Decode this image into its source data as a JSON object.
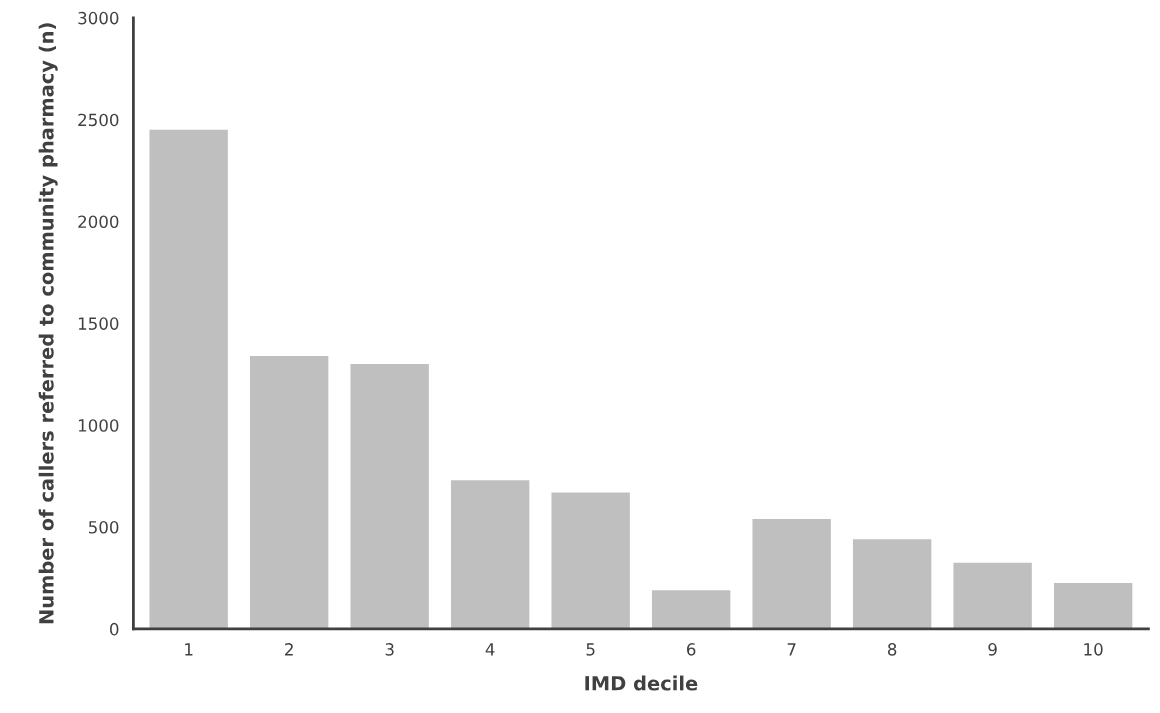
{
  "chart_data": {
    "type": "bar",
    "xlabel": "IMD decile",
    "ylabel": "Number of callers referred to community pharmacy (n)",
    "categories": [
      "1",
      "2",
      "3",
      "4",
      "5",
      "6",
      "7",
      "8",
      "9",
      "10"
    ],
    "values": [
      2450,
      1340,
      1300,
      730,
      670,
      190,
      540,
      440,
      325,
      225
    ],
    "color": "#bfbfbf",
    "ylim": [
      0,
      3000
    ],
    "yticks": [
      0,
      500,
      1000,
      1500,
      2000,
      2500,
      3000
    ],
    "grid": false,
    "legend": false
  }
}
